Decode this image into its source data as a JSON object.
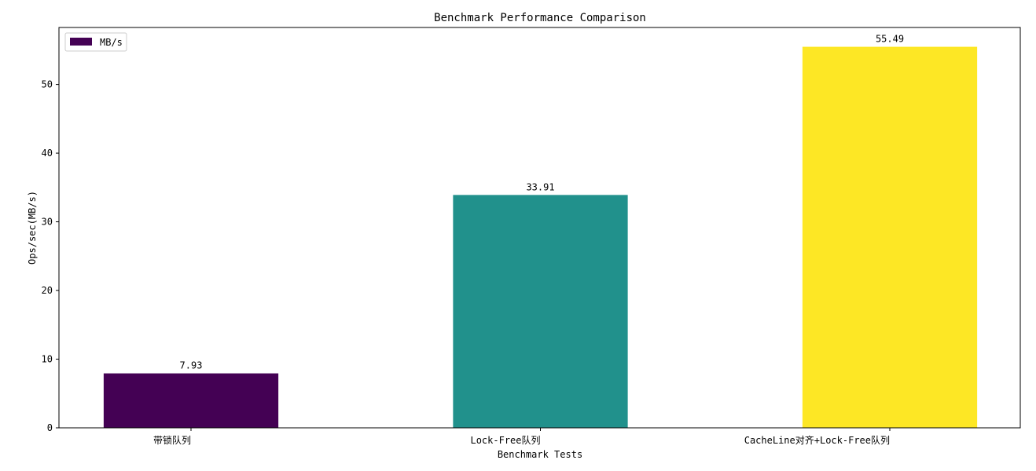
{
  "chart_data": {
    "type": "bar",
    "title": "Benchmark Performance Comparison",
    "xlabel": "Benchmark Tests",
    "ylabel": "Ops/sec(MB/s)",
    "categories": [
      "带锁队列",
      "Lock-Free队列",
      "CacheLine对齐+Lock-Free队列"
    ],
    "series": [
      {
        "name": "MB/s",
        "values": [
          7.93,
          33.91,
          55.49
        ],
        "colors": [
          "#440154",
          "#21918c",
          "#fde725"
        ]
      }
    ],
    "data_labels": [
      "7.93",
      "33.91",
      "55.49"
    ],
    "ylim": [
      0,
      58.3
    ],
    "yticks": [
      0,
      10,
      20,
      30,
      40,
      50
    ],
    "grid": false,
    "legend": "top-left"
  }
}
